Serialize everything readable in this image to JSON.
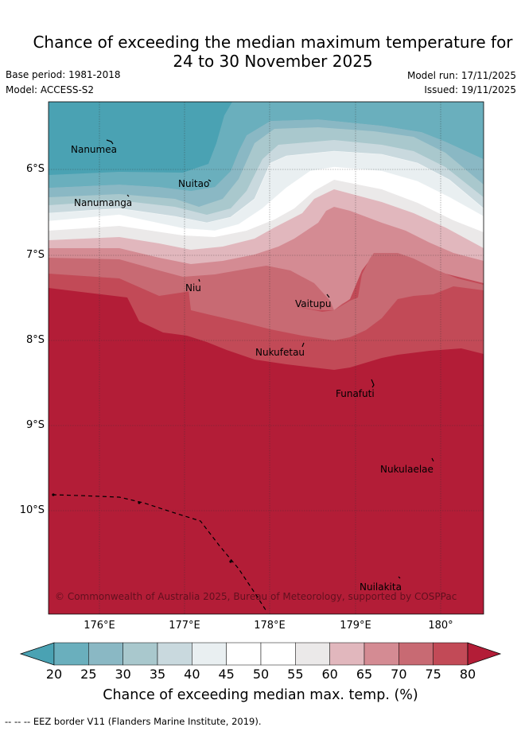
{
  "title": {
    "line1": "Chance of exceeding the median maximum temperature for",
    "line2": "24 to 30 November 2025"
  },
  "meta": {
    "base_period": "Base period: 1981-2018",
    "model": "Model: ACCESS-S2",
    "model_run": "Model run: 17/11/2025",
    "issued": "Issued: 19/11/2025"
  },
  "map": {
    "lat_ticks": [
      "6°S",
      "7°S",
      "8°S",
      "9°S",
      "10°S"
    ],
    "lon_ticks": [
      "176°E",
      "177°E",
      "178°E",
      "179°E",
      "180°"
    ],
    "places": {
      "nanumea": "Nanumea",
      "nanumanga": "Nanumanga",
      "nuitao": "Nuitao",
      "niu": "Niu",
      "vaitupu": "Vaitupu",
      "nukufetau": "Nukufetau",
      "funafuti": "Funafuti",
      "nukulaelae": "Nukulaelae",
      "nuilakita": "Nuilakita"
    },
    "copyright": "© Commonwealth of Australia 2025, Bureau of Meteorology, supported by COSPPac"
  },
  "colorbar": {
    "ticks": [
      "20",
      "25",
      "30",
      "35",
      "40",
      "45",
      "50",
      "55",
      "60",
      "65",
      "70",
      "75",
      "80"
    ],
    "colors": [
      "#4aa2b3",
      "#6aafbd",
      "#8ab8c4",
      "#a9c8cd",
      "#c9d9de",
      "#e9eff1",
      "#ffffff",
      "#ffffff",
      "#ebe9e9",
      "#e1b7bd",
      "#d48b93",
      "#c86a73",
      "#c24a57",
      "#b31d37"
    ],
    "label": "Chance of exceeding median max. temp. (%)"
  },
  "footer": "-- -- -- EEZ border V11 (Flanders Marine Institute, 2019)."
}
